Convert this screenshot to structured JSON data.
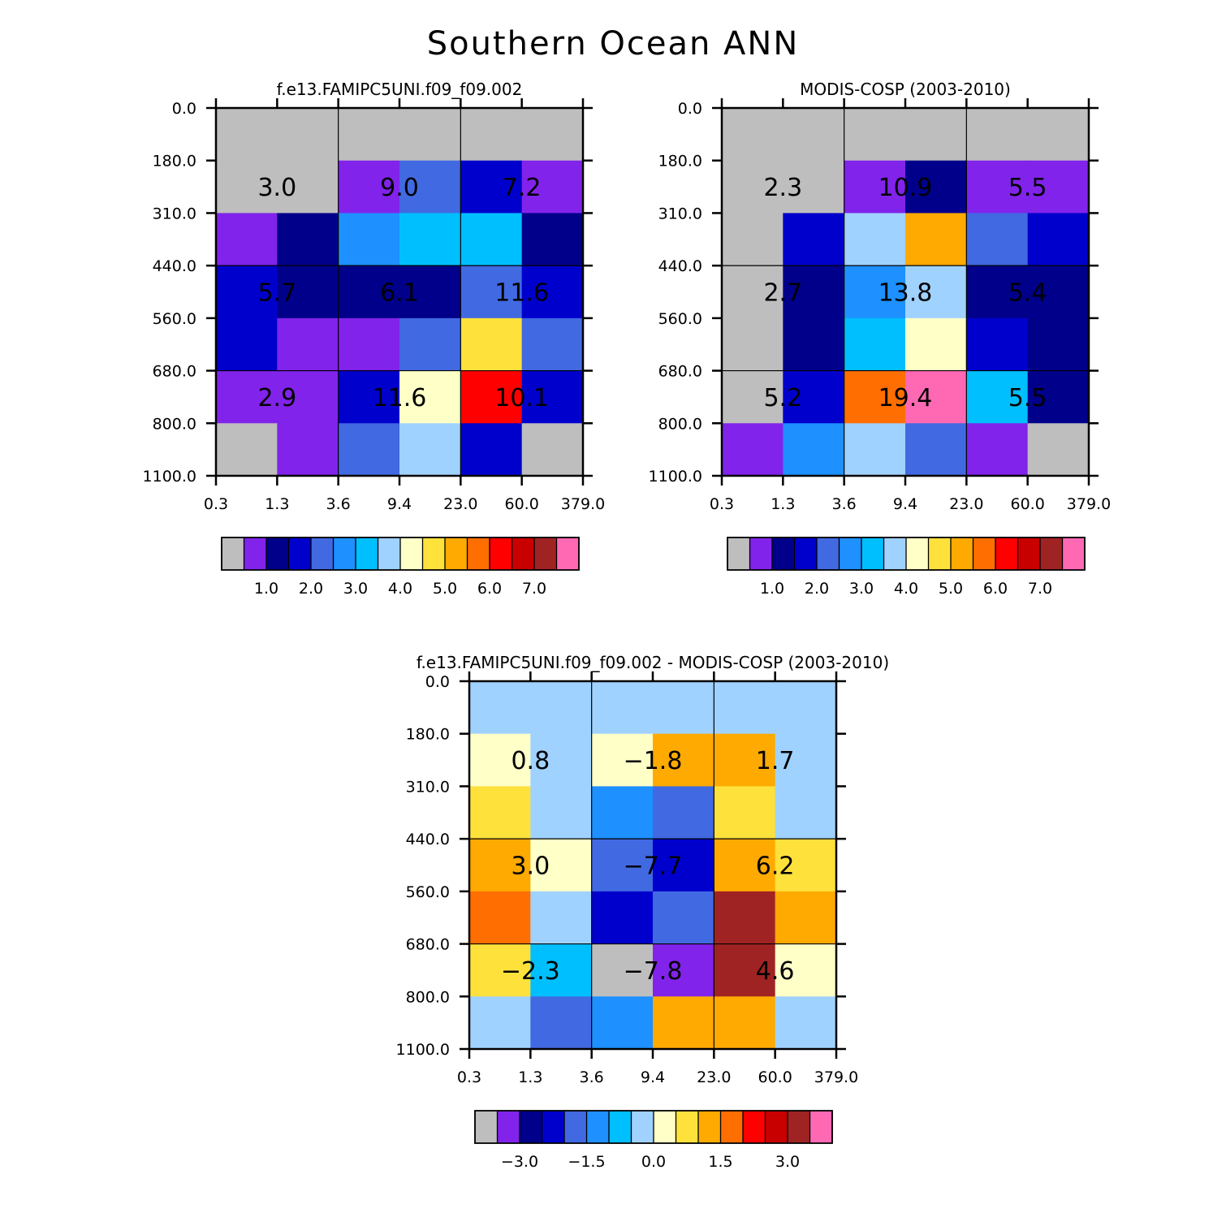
{
  "figure": {
    "title": "Southern Ocean ANN"
  },
  "palette": [
    "#BEBEBE",
    "#8123EA",
    "#00008A",
    "#0000CD",
    "#4169E1",
    "#1E90FF",
    "#00BFFF",
    "#A0D2FF",
    "#FFFFC8",
    "#FFE13C",
    "#FFAA00",
    "#FF6E00",
    "#FF0000",
    "#C80000",
    "#A02323",
    "#FF69B4"
  ],
  "chart_data": [
    {
      "type": "heatmap",
      "title": "f.e13.FAMIPC5UNI.f09_f09.002",
      "x_tick_labels": [
        "0.3",
        "1.3",
        "3.6",
        "9.4",
        "23.0",
        "60.0",
        "379.0"
      ],
      "y_tick_labels": [
        "0.0",
        "180.0",
        "310.0",
        "440.0",
        "560.0",
        "680.0",
        "800.0",
        "1100.0"
      ],
      "cell_color_index": [
        [
          0,
          0,
          0,
          0,
          0,
          0
        ],
        [
          0,
          0,
          1,
          4,
          3,
          1
        ],
        [
          1,
          2,
          5,
          6,
          6,
          2
        ],
        [
          3,
          2,
          2,
          2,
          4,
          3
        ],
        [
          3,
          1,
          1,
          4,
          9,
          4
        ],
        [
          1,
          1,
          3,
          8,
          12,
          3
        ],
        [
          0,
          1,
          4,
          7,
          3,
          0
        ]
      ],
      "group_summaries": [
        [
          "3.0",
          "9.0",
          "7.2"
        ],
        [
          "5.7",
          "6.1",
          "11.6"
        ],
        [
          "2.9",
          "11.6",
          "10.1"
        ]
      ],
      "colorbar_labels": [
        "1.0",
        "2.0",
        "3.0",
        "4.0",
        "5.0",
        "6.0",
        "7.0"
      ]
    },
    {
      "type": "heatmap",
      "title": "MODIS-COSP (2003-2010)",
      "x_tick_labels": [
        "0.3",
        "1.3",
        "3.6",
        "9.4",
        "23.0",
        "60.0",
        "379.0"
      ],
      "y_tick_labels": [
        "0.0",
        "180.0",
        "310.0",
        "440.0",
        "560.0",
        "680.0",
        "800.0",
        "1100.0"
      ],
      "cell_color_index": [
        [
          0,
          0,
          0,
          0,
          0,
          0
        ],
        [
          0,
          0,
          1,
          2,
          1,
          1
        ],
        [
          0,
          3,
          7,
          10,
          4,
          3
        ],
        [
          0,
          2,
          5,
          7,
          2,
          2
        ],
        [
          0,
          2,
          6,
          8,
          3,
          2
        ],
        [
          0,
          3,
          11,
          15,
          6,
          2
        ],
        [
          1,
          5,
          7,
          4,
          1,
          0
        ]
      ],
      "group_summaries": [
        [
          "2.3",
          "10.9",
          "5.5"
        ],
        [
          "2.7",
          "13.8",
          "5.4"
        ],
        [
          "5.2",
          "19.4",
          "5.5"
        ]
      ],
      "colorbar_labels": [
        "1.0",
        "2.0",
        "3.0",
        "4.0",
        "5.0",
        "6.0",
        "7.0"
      ]
    },
    {
      "type": "heatmap",
      "title": "f.e13.FAMIPC5UNI.f09_f09.002 - MODIS-COSP (2003-2010)",
      "x_tick_labels": [
        "0.3",
        "1.3",
        "3.6",
        "9.4",
        "23.0",
        "60.0",
        "379.0"
      ],
      "y_tick_labels": [
        "0.0",
        "180.0",
        "310.0",
        "440.0",
        "560.0",
        "680.0",
        "800.0",
        "1100.0"
      ],
      "cell_color_index": [
        [
          7,
          7,
          7,
          7,
          7,
          7
        ],
        [
          8,
          7,
          8,
          10,
          10,
          7
        ],
        [
          9,
          7,
          5,
          4,
          9,
          7
        ],
        [
          10,
          8,
          4,
          3,
          10,
          9
        ],
        [
          11,
          7,
          3,
          4,
          14,
          10
        ],
        [
          9,
          6,
          0,
          1,
          14,
          8
        ],
        [
          7,
          4,
          5,
          10,
          10,
          7
        ]
      ],
      "group_summaries": [
        [
          "0.8",
          "-1.8",
          "1.7"
        ],
        [
          "3.0",
          "-7.7",
          "6.2"
        ],
        [
          "-2.3",
          "-7.8",
          "4.6"
        ]
      ],
      "colorbar_labels": [
        "-3.0",
        "-1.5",
        "0.0",
        "1.5",
        "3.0"
      ]
    }
  ]
}
